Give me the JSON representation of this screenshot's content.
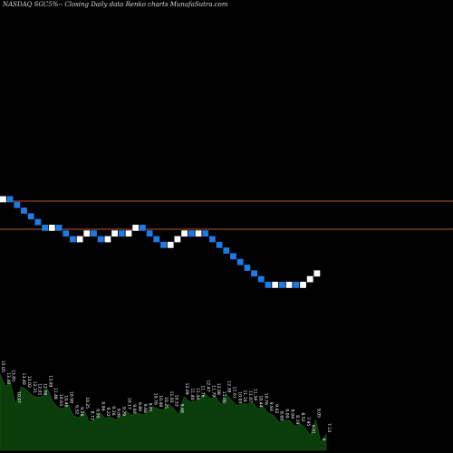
{
  "colors": {
    "background": "#000000",
    "up": "#ffffff",
    "down": "#1e7be6",
    "ref_line": "#b5562a",
    "volume": "#0b3d0b"
  },
  "chart_data": {
    "type": "renko",
    "title": "NASDAQ SGC5%-- Closing Daily data  Renko  charts MunafaSutra.com",
    "bricks": [
      "up",
      "down",
      "down",
      "down",
      "down",
      "down",
      "down",
      "up",
      "down",
      "down",
      "down",
      "up",
      "up",
      "down",
      "down",
      "up",
      "up",
      "down",
      "up",
      "up",
      "down",
      "down",
      "down",
      "down",
      "up",
      "up",
      "up",
      "down",
      "up",
      "down",
      "down",
      "down",
      "down",
      "down",
      "down",
      "down",
      "down",
      "down",
      "down",
      "up",
      "down",
      "up",
      "down",
      "up",
      "up",
      "up"
    ],
    "reference_lines": [
      "upper",
      "lower"
    ],
    "volume_labels": [
      "15.05",
      "13.48",
      "13.85",
      "10.97",
      "13.40",
      "13.02",
      "12.31",
      "12.01",
      "12.04",
      "13.09",
      "11.48",
      "10.63",
      "10.46",
      "10.98",
      "9.52",
      "9.26",
      "10.25",
      "8.72",
      "9.00",
      "9.96",
      "9.22",
      "9.36",
      "9.06",
      "9.29",
      "10.17",
      "9.60",
      "9.89",
      "9.68",
      "9.81",
      "10.76",
      "10.48",
      "10.25",
      "11.03",
      "10.53",
      "9.68",
      "12.09",
      "11.40",
      "11.44",
      "11.76",
      "12.47",
      "11.79",
      "12.08",
      "11.00",
      "12.38",
      "11.61",
      "10.93",
      "11.16",
      "11.07",
      "11.34",
      "10.44",
      "10.76",
      "9.93",
      "9.62",
      "8.69",
      "9.00",
      "8.94",
      "8.19",
      "8.52",
      "7.95",
      "6.91",
      "9.05",
      "6",
      "7.13"
    ]
  }
}
